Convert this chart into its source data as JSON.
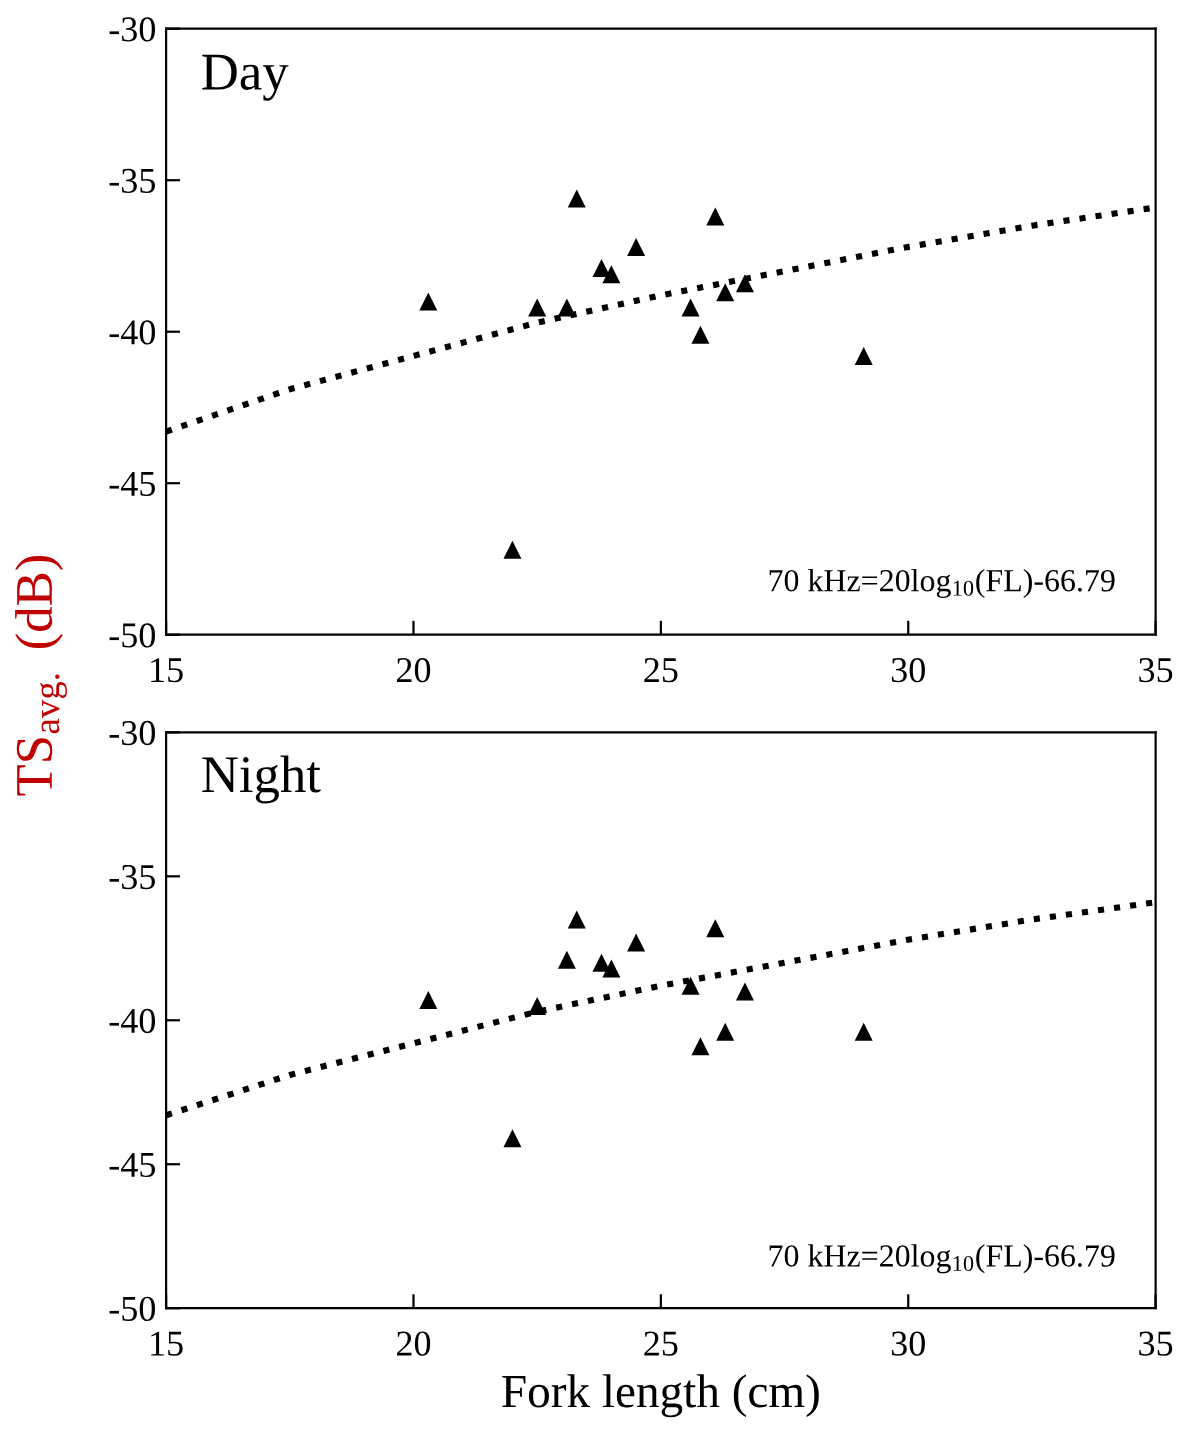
{
  "chart_data": [
    {
      "type": "scatter",
      "title": "Day",
      "ylabel": "TS$_{avg.}$ (dB)",
      "xlim": [
        15,
        35
      ],
      "xticks": [
        15,
        20,
        25,
        30,
        35
      ],
      "ylim": [
        -50,
        -30
      ],
      "yticks": [
        -50,
        -45,
        -40,
        -35,
        -30
      ],
      "annotations": [
        "70 kHz=20log$_{10}$(FL)-66.79"
      ],
      "series": [
        {
          "type": "scatter",
          "marker": "triangle",
          "color": "#000000",
          "x": [
            20.3,
            22.0,
            22.5,
            23.1,
            23.3,
            23.8,
            24.0,
            24.5,
            25.6,
            25.8,
            26.1,
            26.3,
            26.7,
            29.1
          ],
          "values": [
            -39.0,
            -47.2,
            -39.2,
            -39.2,
            -35.6,
            -37.9,
            -38.1,
            -37.2,
            -39.2,
            -40.1,
            -36.2,
            -38.7,
            -38.4,
            -40.8
          ]
        },
        {
          "type": "line",
          "line_style": "dotted",
          "color": "#000000",
          "x": [
            15,
            17.5,
            20,
            22.5,
            25,
            27.5,
            30,
            32.5,
            35
          ],
          "values": [
            -43.3,
            -41.9,
            -40.8,
            -39.7,
            -38.8,
            -38.0,
            -37.2,
            -36.5,
            -35.9
          ]
        }
      ]
    },
    {
      "type": "scatter",
      "title": "Night",
      "xlabel": "Fork length (cm)",
      "xlim": [
        15,
        35
      ],
      "xticks": [
        15,
        20,
        25,
        30,
        35
      ],
      "ylim": [
        -50,
        -30
      ],
      "yticks": [
        -50,
        -45,
        -40,
        -35,
        -30
      ],
      "annotations": [
        "70 kHz=20log$_{10}$(FL)-66.79"
      ],
      "series": [
        {
          "type": "scatter",
          "marker": "triangle",
          "color": "#000000",
          "x": [
            20.3,
            22.0,
            22.5,
            23.1,
            23.3,
            23.8,
            24.0,
            24.5,
            25.6,
            25.8,
            26.1,
            26.3,
            26.7,
            29.1
          ],
          "values": [
            -39.3,
            -44.1,
            -39.5,
            -37.9,
            -36.5,
            -38.0,
            -38.2,
            -37.3,
            -38.8,
            -40.9,
            -36.8,
            -40.4,
            -39.0,
            -40.4
          ]
        },
        {
          "type": "line",
          "line_style": "dotted",
          "color": "#000000",
          "x": [
            15,
            17.5,
            20,
            22.5,
            25,
            27.5,
            30,
            32.5,
            35
          ],
          "values": [
            -43.3,
            -41.9,
            -40.8,
            -39.7,
            -38.8,
            -38.0,
            -37.2,
            -36.5,
            -35.9
          ]
        }
      ]
    }
  ]
}
